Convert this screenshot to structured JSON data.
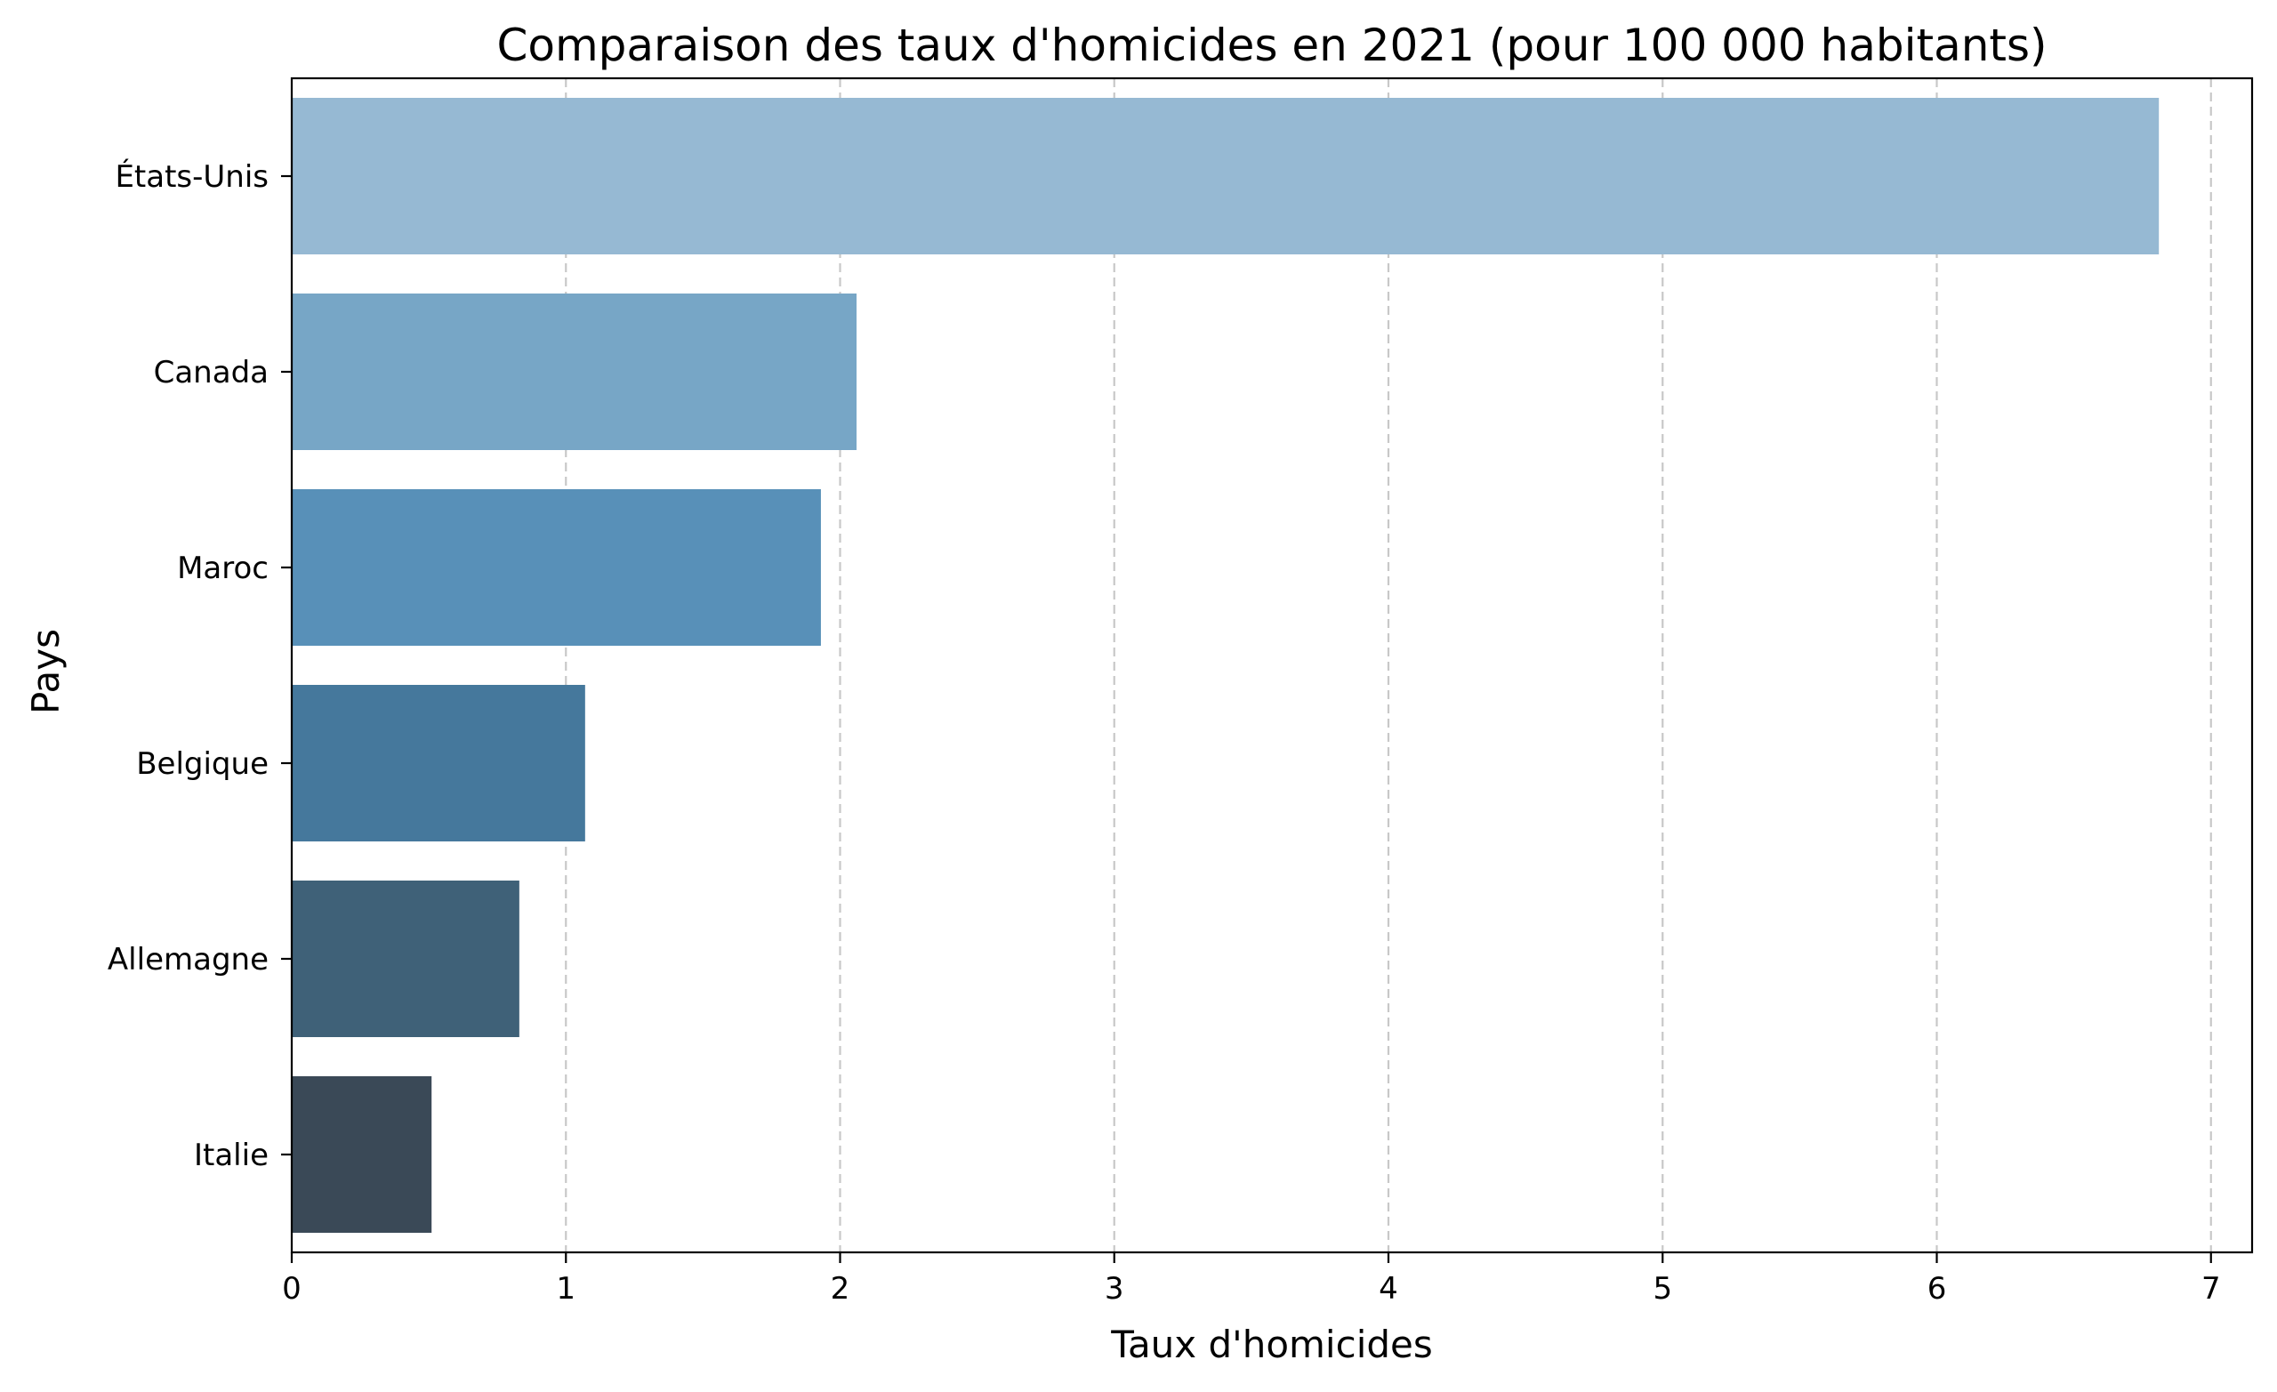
{
  "chart_data": {
    "type": "bar",
    "orientation": "horizontal",
    "title": "Comparaison des taux d'homicides en 2021 (pour 100 000 habitants)",
    "xlabel": "Taux d'homicides",
    "ylabel": "Pays",
    "categories": [
      "États-Unis",
      "Canada",
      "Maroc",
      "Belgique",
      "Allemagne",
      "Italie"
    ],
    "values": [
      6.81,
      2.06,
      1.93,
      1.07,
      0.83,
      0.51
    ],
    "colors": [
      "#96b9d3",
      "#77a6c6",
      "#5890b8",
      "#45789c",
      "#3f6178",
      "#3a4957"
    ],
    "xlim": [
      0,
      7.15
    ],
    "xticks": [
      "0",
      "1",
      "2",
      "3",
      "4",
      "5",
      "6",
      "7"
    ],
    "grid": "x-dashed",
    "legend": "none"
  }
}
